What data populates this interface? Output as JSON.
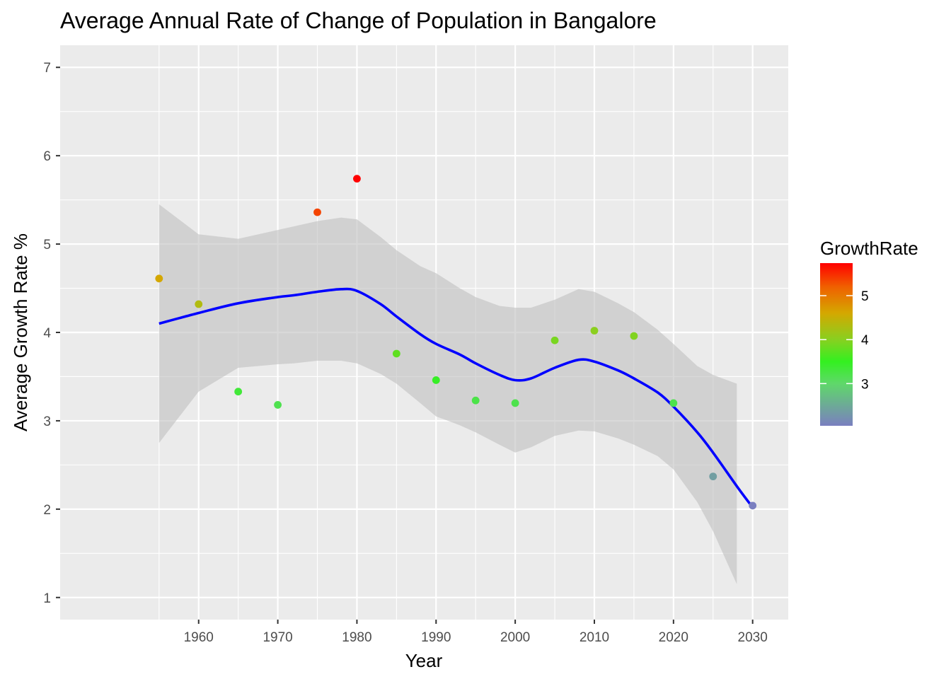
{
  "chart_data": {
    "type": "scatter",
    "title": "Average Annual Rate of Change of Population in Bangalore",
    "xlabel": "Year",
    "ylabel": "Average Growth Rate %",
    "xlim": [
      1942.5,
      2034.5
    ],
    "ylim": [
      0.75,
      7.25
    ],
    "x_ticks": [
      1960,
      1970,
      1980,
      1990,
      2000,
      2010,
      2020,
      2030
    ],
    "y_ticks": [
      1,
      2,
      3,
      4,
      5,
      6,
      7
    ],
    "grid": true,
    "points": [
      {
        "x": 1955,
        "y": 4.61
      },
      {
        "x": 1960,
        "y": 4.32
      },
      {
        "x": 1965,
        "y": 3.33
      },
      {
        "x": 1970,
        "y": 3.18
      },
      {
        "x": 1975,
        "y": 5.36
      },
      {
        "x": 1980,
        "y": 5.74
      },
      {
        "x": 1985,
        "y": 3.76
      },
      {
        "x": 1990,
        "y": 3.46
      },
      {
        "x": 1995,
        "y": 3.23
      },
      {
        "x": 2000,
        "y": 3.2
      },
      {
        "x": 2005,
        "y": 3.91
      },
      {
        "x": 2010,
        "y": 4.02
      },
      {
        "x": 2015,
        "y": 3.96
      },
      {
        "x": 2020,
        "y": 3.2
      },
      {
        "x": 2025,
        "y": 2.37
      },
      {
        "x": 2030,
        "y": 2.04
      }
    ],
    "smooth": {
      "color": "#0000ff",
      "x": [
        1955,
        1960,
        1965,
        1970,
        1972,
        1975,
        1978,
        1980,
        1983,
        1985,
        1988,
        1990,
        1993,
        1995,
        1998,
        2000,
        2002,
        2005,
        2008,
        2010,
        2013,
        2015,
        2018,
        2020,
        2023,
        2025,
        2028,
        2030
      ],
      "y": [
        4.1,
        4.22,
        4.33,
        4.4,
        4.42,
        4.46,
        4.49,
        4.47,
        4.32,
        4.18,
        3.98,
        3.87,
        3.75,
        3.65,
        3.52,
        3.46,
        3.48,
        3.6,
        3.69,
        3.67,
        3.57,
        3.48,
        3.32,
        3.16,
        2.87,
        2.64,
        2.26,
        2.02
      ],
      "lower": [
        2.75,
        3.33,
        3.6,
        3.64,
        3.65,
        3.68,
        3.68,
        3.65,
        3.53,
        3.42,
        3.2,
        3.05,
        2.95,
        2.87,
        2.73,
        2.64,
        2.7,
        2.83,
        2.89,
        2.88,
        2.8,
        2.73,
        2.6,
        2.45,
        2.08,
        1.75,
        1.15,
        null
      ],
      "upper": [
        5.45,
        5.11,
        5.06,
        5.16,
        5.2,
        5.26,
        5.3,
        5.28,
        5.08,
        4.93,
        4.75,
        4.67,
        4.5,
        4.4,
        4.3,
        4.28,
        4.28,
        4.37,
        4.49,
        4.46,
        4.33,
        4.23,
        4.03,
        3.87,
        3.62,
        3.52,
        3.42,
        null
      ]
    },
    "legend": {
      "title": "GrowthRate",
      "placement": "right",
      "type": "colorbar",
      "range": [
        2.04,
        5.74
      ],
      "ticks": [
        3,
        4,
        5
      ],
      "gradient": [
        {
          "value": 2.04,
          "color": "#7a7fc0"
        },
        {
          "value": 3.0,
          "color": "#5fd86a"
        },
        {
          "value": 3.5,
          "color": "#33f020"
        },
        {
          "value": 4.0,
          "color": "#88d020"
        },
        {
          "value": 4.6,
          "color": "#d4a800"
        },
        {
          "value": 5.2,
          "color": "#f06000"
        },
        {
          "value": 5.74,
          "color": "#ff0000"
        }
      ]
    },
    "colors": {
      "panel": "#ebebeb",
      "gridline": "#ffffff",
      "ribbon": "#c0c0c0"
    }
  }
}
